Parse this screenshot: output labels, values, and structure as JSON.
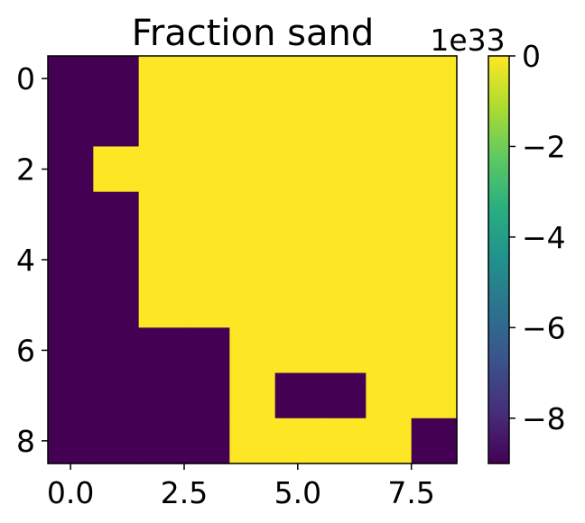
{
  "chart_data": {
    "type": "heatmap",
    "title": "Fraction sand",
    "xlabel": "",
    "ylabel": "",
    "xlim": [
      -0.5,
      8.5
    ],
    "ylim": [
      8.5,
      -0.5
    ],
    "x_ticks": [
      0.0,
      2.5,
      5.0,
      7.5
    ],
    "x_tick_labels": [
      "0.0",
      "2.5",
      "5.0",
      "7.5"
    ],
    "y_ticks": [
      0,
      2,
      4,
      6,
      8
    ],
    "y_tick_labels": [
      "0",
      "2",
      "4",
      "6",
      "8"
    ],
    "colormap": "viridis",
    "color_min": -9e+33,
    "color_max": 0,
    "colorbar_ticks": [
      0,
      -2e+33,
      -4e+33,
      -6e+33,
      -8e+33
    ],
    "colorbar_tick_labels": [
      "0",
      "−2",
      "−4",
      "−6",
      "−8"
    ],
    "colorbar_offset_label": "1e33",
    "grid": false,
    "rows": 9,
    "cols": 9,
    "values": [
      [
        -9e+33,
        -9e+33,
        0,
        0,
        0,
        0,
        0,
        0,
        0
      ],
      [
        -9e+33,
        -9e+33,
        0,
        0,
        0,
        0,
        0,
        0,
        0
      ],
      [
        -9e+33,
        0,
        0,
        0,
        0,
        0,
        0,
        0,
        0
      ],
      [
        -9e+33,
        -9e+33,
        0,
        0,
        0,
        0,
        0,
        0,
        0
      ],
      [
        -9e+33,
        -9e+33,
        0,
        0,
        0,
        0,
        0,
        0,
        0
      ],
      [
        -9e+33,
        -9e+33,
        0,
        0,
        0,
        0,
        0,
        0,
        0
      ],
      [
        -9e+33,
        -9e+33,
        -9e+33,
        -9e+33,
        0,
        0,
        0,
        0,
        0
      ],
      [
        -9e+33,
        -9e+33,
        -9e+33,
        -9e+33,
        0,
        -9e+33,
        -9e+33,
        0,
        0
      ],
      [
        -9e+33,
        -9e+33,
        -9e+33,
        -9e+33,
        0,
        0,
        0,
        0,
        -9e+33
      ]
    ]
  }
}
